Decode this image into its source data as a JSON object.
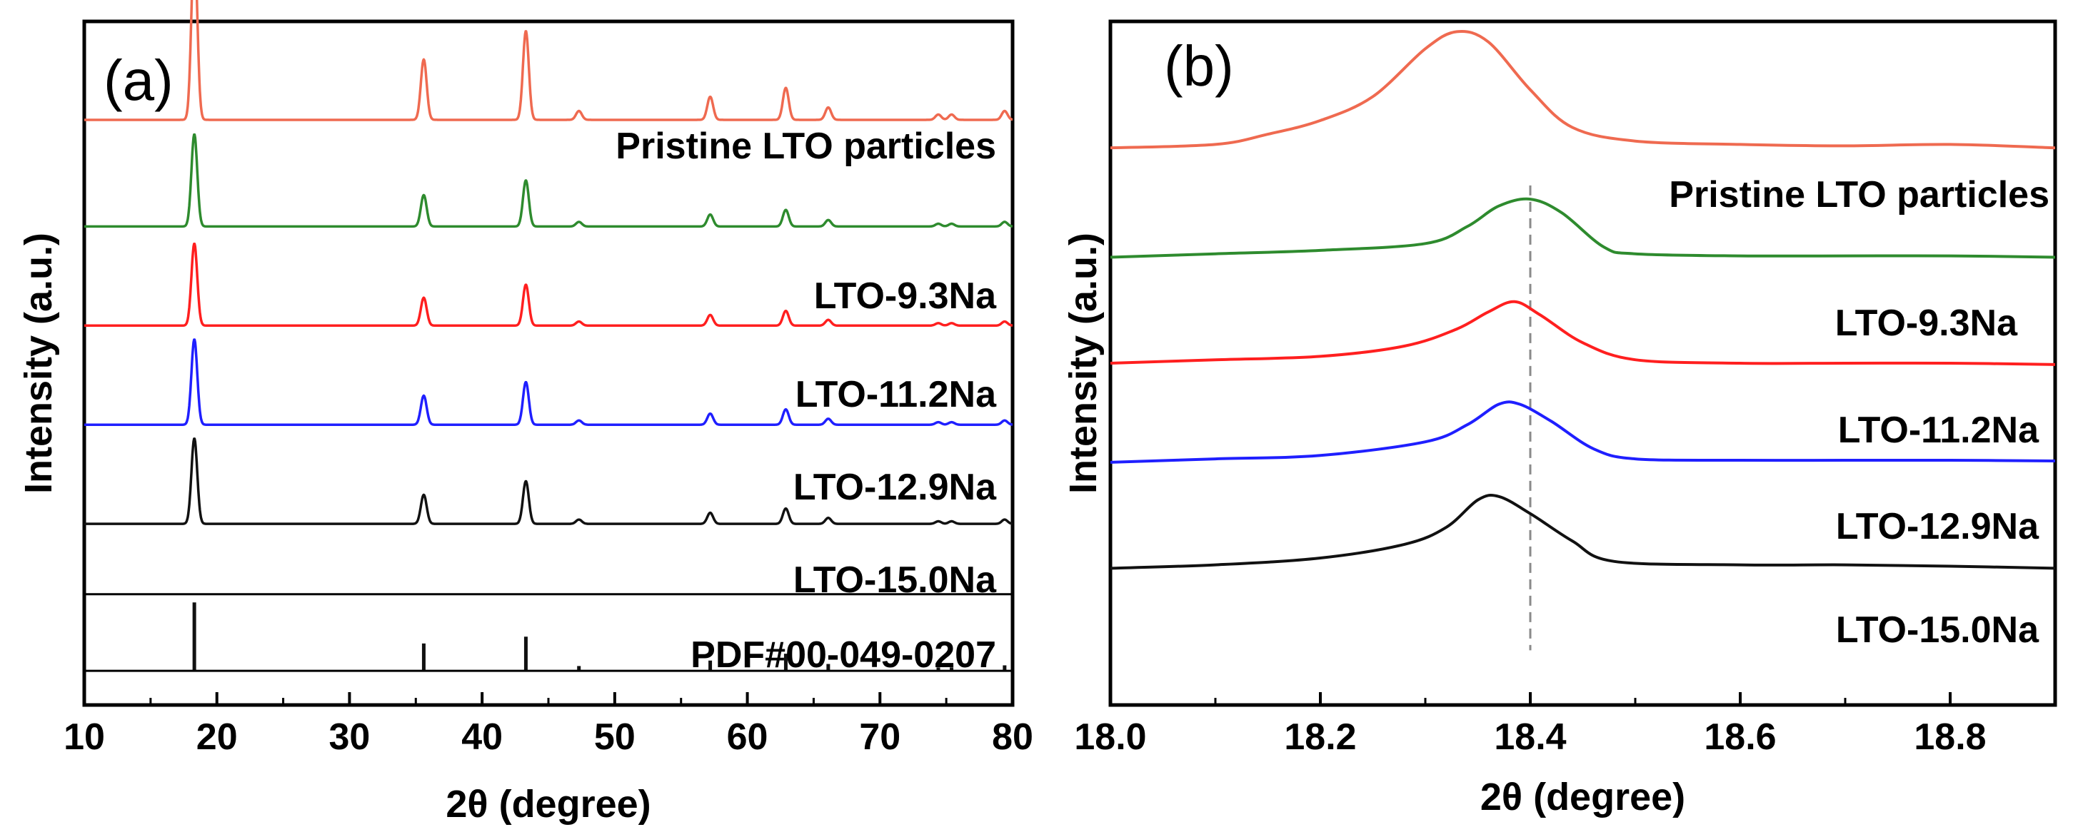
{
  "chart_data": [
    {
      "type": "line",
      "panel_label": "(a)",
      "xlabel": "2θ (degree)",
      "ylabel": "Intensity (a.u.)",
      "xlim": [
        10,
        80
      ],
      "xticks": [
        "10",
        "20",
        "30",
        "40",
        "50",
        "60",
        "70",
        "80"
      ],
      "peaks": [
        {
          "x": 18.3,
          "h": 1.0
        },
        {
          "x": 35.6,
          "h": 0.34
        },
        {
          "x": 43.3,
          "h": 0.5
        },
        {
          "x": 47.3,
          "h": 0.05
        },
        {
          "x": 57.2,
          "h": 0.13
        },
        {
          "x": 62.9,
          "h": 0.18
        },
        {
          "x": 66.1,
          "h": 0.07
        },
        {
          "x": 74.4,
          "h": 0.03
        },
        {
          "x": 75.4,
          "h": 0.03
        },
        {
          "x": 79.4,
          "h": 0.05
        }
      ],
      "series": [
        {
          "name": "Pristine LTO particles",
          "color": "#ef6a50",
          "baseline": 0.856,
          "scale": 0.26
        },
        {
          "name": "LTO-9.3Na",
          "color": "#2e8b2e",
          "baseline": 0.7,
          "scale": 0.135
        },
        {
          "name": "LTO-11.2Na",
          "color": "#ff1f1f",
          "baseline": 0.555,
          "scale": 0.12
        },
        {
          "name": "LTO-12.9Na",
          "color": "#1f1fff",
          "baseline": 0.41,
          "scale": 0.125
        },
        {
          "name": "LTO-15.0Na",
          "color": "#111111",
          "baseline": 0.265,
          "scale": 0.125
        }
      ],
      "reference": {
        "name": "PDF#00-049-0207",
        "color": "#111111",
        "baseline": 0.05,
        "lines": [
          {
            "x": 18.3,
            "h": 0.1
          },
          {
            "x": 35.6,
            "h": 0.04
          },
          {
            "x": 43.3,
            "h": 0.05
          },
          {
            "x": 47.3,
            "h": 0.007
          },
          {
            "x": 57.2,
            "h": 0.015
          },
          {
            "x": 62.9,
            "h": 0.025
          },
          {
            "x": 66.1,
            "h": 0.01
          },
          {
            "x": 74.4,
            "h": 0.005
          },
          {
            "x": 75.4,
            "h": 0.005
          },
          {
            "x": 79.4,
            "h": 0.008
          }
        ]
      }
    },
    {
      "type": "line",
      "panel_label": "(b)",
      "xlabel": "2θ (degree)",
      "ylabel": "Intensity (a.u.)",
      "xlim": [
        18.0,
        18.9
      ],
      "xticks": [
        "18.0",
        "18.2",
        "18.4",
        "18.6",
        "18.8"
      ],
      "reference_line_x": 18.4,
      "series": [
        {
          "name": "Pristine LTO particles",
          "color": "#ef6a50",
          "points": [
            [
              18.0,
              0.815
            ],
            [
              18.1,
              0.82
            ],
            [
              18.15,
              0.835
            ],
            [
              18.2,
              0.855
            ],
            [
              18.25,
              0.89
            ],
            [
              18.3,
              0.96
            ],
            [
              18.33,
              0.985
            ],
            [
              18.36,
              0.97
            ],
            [
              18.4,
              0.9
            ],
            [
              18.44,
              0.845
            ],
            [
              18.5,
              0.825
            ],
            [
              18.6,
              0.82
            ],
            [
              18.7,
              0.818
            ],
            [
              18.8,
              0.82
            ],
            [
              18.9,
              0.815
            ]
          ]
        },
        {
          "name": "LTO-9.3Na",
          "color": "#2e8b2e",
          "points": [
            [
              18.0,
              0.655
            ],
            [
              18.1,
              0.66
            ],
            [
              18.2,
              0.665
            ],
            [
              18.3,
              0.675
            ],
            [
              18.34,
              0.7
            ],
            [
              18.37,
              0.73
            ],
            [
              18.4,
              0.74
            ],
            [
              18.43,
              0.72
            ],
            [
              18.47,
              0.67
            ],
            [
              18.5,
              0.66
            ],
            [
              18.6,
              0.657
            ],
            [
              18.7,
              0.657
            ],
            [
              18.8,
              0.657
            ],
            [
              18.9,
              0.655
            ]
          ]
        },
        {
          "name": "LTO-11.2Na",
          "color": "#ff1f1f",
          "points": [
            [
              18.0,
              0.5
            ],
            [
              18.1,
              0.505
            ],
            [
              18.2,
              0.51
            ],
            [
              18.28,
              0.525
            ],
            [
              18.33,
              0.55
            ],
            [
              18.36,
              0.575
            ],
            [
              18.385,
              0.59
            ],
            [
              18.41,
              0.57
            ],
            [
              18.45,
              0.53
            ],
            [
              18.5,
              0.505
            ],
            [
              18.6,
              0.5
            ],
            [
              18.7,
              0.5
            ],
            [
              18.8,
              0.5
            ],
            [
              18.9,
              0.498
            ]
          ]
        },
        {
          "name": "LTO-12.9Na",
          "color": "#1f1fff",
          "points": [
            [
              18.0,
              0.355
            ],
            [
              18.1,
              0.36
            ],
            [
              18.2,
              0.365
            ],
            [
              18.3,
              0.385
            ],
            [
              18.34,
              0.41
            ],
            [
              18.37,
              0.44
            ],
            [
              18.39,
              0.44
            ],
            [
              18.42,
              0.415
            ],
            [
              18.46,
              0.375
            ],
            [
              18.5,
              0.36
            ],
            [
              18.6,
              0.358
            ],
            [
              18.7,
              0.358
            ],
            [
              18.8,
              0.358
            ],
            [
              18.9,
              0.357
            ]
          ]
        },
        {
          "name": "LTO-15.0Na",
          "color": "#111111",
          "points": [
            [
              18.0,
              0.2
            ],
            [
              18.1,
              0.205
            ],
            [
              18.2,
              0.215
            ],
            [
              18.28,
              0.235
            ],
            [
              18.32,
              0.26
            ],
            [
              18.35,
              0.3
            ],
            [
              18.37,
              0.305
            ],
            [
              18.4,
              0.28
            ],
            [
              18.44,
              0.24
            ],
            [
              18.48,
              0.21
            ],
            [
              18.6,
              0.205
            ],
            [
              18.7,
              0.205
            ],
            [
              18.8,
              0.203
            ],
            [
              18.9,
              0.2
            ]
          ]
        }
      ]
    }
  ]
}
